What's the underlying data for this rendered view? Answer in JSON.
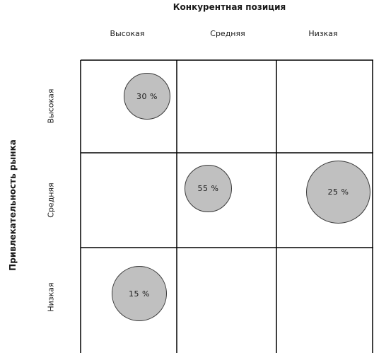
{
  "x_axis": {
    "title": "Конкурентная позиция",
    "columns": [
      "Высокая",
      "Средняя",
      "Низкая"
    ]
  },
  "y_axis": {
    "title": "Привлекательность рынка",
    "rows": [
      "Высокая",
      "Средняя",
      "Низкая"
    ]
  },
  "cells": {
    "high_high": "30 %",
    "mid_mid": "55 %",
    "mid_low": "25 %",
    "low_high": "15 %"
  },
  "colors": {
    "bubble_fill": "#c0c0c0",
    "bubble_stroke": "#3a3a3a",
    "grid_line": "#000000"
  }
}
